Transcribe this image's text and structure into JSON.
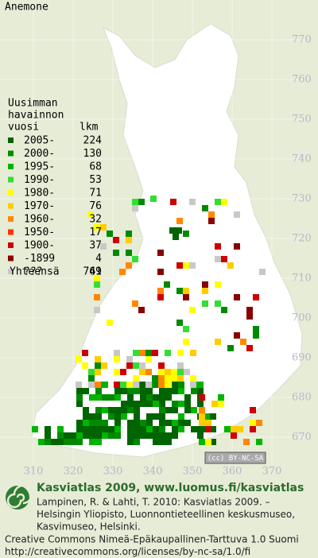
{
  "title": "Anemone",
  "legend": {
    "header": [
      "Uusimman",
      "havainnon",
      "vuosi"
    ],
    "count_header": "lkm",
    "rows": [
      {
        "label": "2005-",
        "count": 224,
        "color": "#006400"
      },
      {
        "label": "2000-",
        "count": 130,
        "color": "#008a00"
      },
      {
        "label": "1995-",
        "count": 68,
        "color": "#00b400"
      },
      {
        "label": "1990-",
        "count": 53,
        "color": "#33dd33"
      },
      {
        "label": "1980-",
        "count": 71,
        "color": "#ffff00"
      },
      {
        "label": "1970-",
        "count": 76,
        "color": "#ffcc00"
      },
      {
        "label": "1960-",
        "count": 32,
        "color": "#ff8800"
      },
      {
        "label": "1950-",
        "count": 17,
        "color": "#ff3300"
      },
      {
        "label": "1900-",
        "count": 37,
        "color": "#cc0000"
      },
      {
        "label": "-1899",
        "count": 4,
        "color": "#880000"
      },
      {
        "label": "???",
        "count": 49,
        "color": "#c8c8c8"
      }
    ],
    "total_label": "Yhteensä",
    "total": 761
  },
  "axes": {
    "x_ticks": [
      310,
      320,
      330,
      340,
      350,
      360,
      370
    ],
    "y_ticks": [
      670,
      680,
      690,
      700,
      710,
      720,
      730,
      740,
      750,
      760,
      770
    ]
  },
  "badge": "(cc) BY-NC-SA",
  "footer": {
    "heading": "Kasviatlas 2009, www.luomus.fi/kasviatlas",
    "citation": [
      "Lampinen, R. & Lahti, T. 2010: Kasviatlas 2009. –",
      "Helsingin Yliopisto, Luonnontieteellinen keskusmuseo,",
      "Kasvimuseo, Helsinki."
    ],
    "license": [
      "Creative Commons Nimeä-Epäkaupallinen-Tarttuva 1.0 Suomi",
      "http://creativecommons.org/licenses/by-nc-sa/1.0/fi"
    ]
  }
}
